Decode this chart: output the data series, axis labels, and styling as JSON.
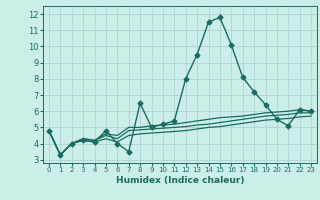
{
  "xlabel": "Humidex (Indice chaleur)",
  "background_color": "#cceee8",
  "grid_color": "#aacccc",
  "line_color": "#1a6b62",
  "xlim": [
    -0.5,
    23.5
  ],
  "ylim": [
    2.8,
    12.5
  ],
  "yticks": [
    3,
    4,
    5,
    6,
    7,
    8,
    9,
    10,
    11,
    12
  ],
  "xticks": [
    0,
    1,
    2,
    3,
    4,
    5,
    6,
    7,
    8,
    9,
    10,
    11,
    12,
    13,
    14,
    15,
    16,
    17,
    18,
    19,
    20,
    21,
    22,
    23
  ],
  "series": [
    {
      "x": [
        0,
        1,
        2,
        3,
        4,
        5,
        6,
        7,
        8,
        9,
        10,
        11,
        12,
        13,
        14,
        15,
        16,
        17,
        18,
        19,
        20,
        21,
        22,
        23
      ],
      "y": [
        4.8,
        3.3,
        4.0,
        4.2,
        4.1,
        4.8,
        4.0,
        3.5,
        6.5,
        5.0,
        5.2,
        5.4,
        8.0,
        9.5,
        11.5,
        11.8,
        10.1,
        8.1,
        7.2,
        6.4,
        5.5,
        5.1,
        6.1,
        6.0
      ],
      "marker": "D",
      "markersize": 2.5,
      "linewidth": 1.0,
      "with_marker": true
    },
    {
      "x": [
        0,
        1,
        2,
        3,
        4,
        5,
        6,
        7,
        8,
        9,
        10,
        11,
        12,
        13,
        14,
        15,
        16,
        17,
        18,
        19,
        20,
        21,
        22,
        23
      ],
      "y": [
        4.8,
        3.3,
        4.0,
        4.3,
        4.2,
        4.6,
        4.5,
        5.0,
        5.0,
        5.1,
        5.15,
        5.2,
        5.3,
        5.4,
        5.5,
        5.6,
        5.65,
        5.7,
        5.8,
        5.9,
        5.95,
        6.0,
        6.1,
        6.0
      ],
      "marker": null,
      "markersize": 0,
      "linewidth": 0.9,
      "with_marker": false
    },
    {
      "x": [
        0,
        1,
        2,
        3,
        4,
        5,
        6,
        7,
        8,
        9,
        10,
        11,
        12,
        13,
        14,
        15,
        16,
        17,
        18,
        19,
        20,
        21,
        22,
        23
      ],
      "y": [
        4.8,
        3.3,
        4.0,
        4.3,
        4.2,
        4.5,
        4.3,
        4.8,
        4.85,
        4.9,
        4.95,
        5.0,
        5.05,
        5.15,
        5.2,
        5.3,
        5.4,
        5.5,
        5.6,
        5.7,
        5.75,
        5.8,
        5.9,
        5.9
      ],
      "marker": null,
      "markersize": 0,
      "linewidth": 0.9,
      "with_marker": false
    },
    {
      "x": [
        0,
        1,
        2,
        3,
        4,
        5,
        6,
        7,
        8,
        9,
        10,
        11,
        12,
        13,
        14,
        15,
        16,
        17,
        18,
        19,
        20,
        21,
        22,
        23
      ],
      "y": [
        4.8,
        3.3,
        4.0,
        4.2,
        4.1,
        4.3,
        4.1,
        4.5,
        4.6,
        4.65,
        4.7,
        4.75,
        4.8,
        4.9,
        5.0,
        5.05,
        5.15,
        5.25,
        5.35,
        5.45,
        5.5,
        5.55,
        5.65,
        5.7
      ],
      "marker": null,
      "markersize": 0,
      "linewidth": 0.9,
      "with_marker": false
    }
  ]
}
